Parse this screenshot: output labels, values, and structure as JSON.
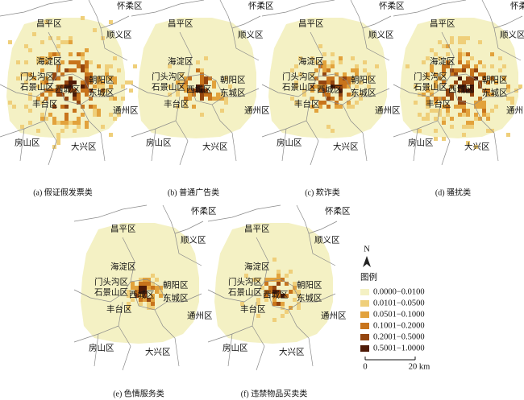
{
  "panels": [
    {
      "caption": "(a) 假证假发票类",
      "districts": [
        "昌平区",
        "怀柔区",
        "顺义区",
        "海淀区",
        "门头沟区",
        "石景山区",
        "西城区",
        "朝阳区",
        "东城区",
        "丰台区",
        "通州区",
        "房山区",
        "大兴区"
      ]
    },
    {
      "caption": "(b) 普通广告类",
      "districts": [
        "昌平区",
        "怀柔区",
        "顺义区",
        "海淀区",
        "门头沟区",
        "石景山区",
        "西城区",
        "朝阳区",
        "东城区",
        "丰台区",
        "通州区",
        "房山区",
        "大兴区"
      ]
    },
    {
      "caption": "(c) 欺诈类",
      "districts": [
        "昌平区",
        "怀柔区",
        "顺义区",
        "海淀区",
        "门头沟区",
        "石景山区",
        "西城区",
        "朝阳区",
        "东城区",
        "丰台区",
        "通州区",
        "房山区",
        "大兴区"
      ]
    },
    {
      "caption": "(d) 骚扰类",
      "districts": [
        "昌平区",
        "怀柔区",
        "顺义区",
        "海淀区",
        "门头沟区",
        "石景山区",
        "西城区",
        "朝阳区",
        "东城区",
        "丰台区",
        "通州区",
        "房山区",
        "大兴区"
      ]
    },
    {
      "caption": "(e) 色情服务类",
      "districts": [
        "昌平区",
        "怀柔区",
        "顺义区",
        "海淀区",
        "门头沟区",
        "石景山区",
        "西城区",
        "朝阳区",
        "东城区",
        "丰台区",
        "通州区",
        "房山区",
        "大兴区"
      ]
    },
    {
      "caption": "(f) 违禁物品买卖类",
      "districts": [
        "昌平区",
        "怀柔区",
        "顺义区",
        "海淀区",
        "门头沟区",
        "石景山区",
        "西城区",
        "朝阳区",
        "东城区",
        "丰台区",
        "通州区",
        "房山区",
        "大兴区"
      ]
    }
  ],
  "legend": {
    "north": "N",
    "title": "图例",
    "items": [
      {
        "label": "0.0000−0.0100",
        "color": "#f4f1c4"
      },
      {
        "label": "0.0101−0.0500",
        "color": "#efcf7a"
      },
      {
        "label": "0.0501−0.1000",
        "color": "#e2a23c"
      },
      {
        "label": "0.1001−0.2000",
        "color": "#c8741c"
      },
      {
        "label": "0.2001−0.5000",
        "color": "#94450f"
      },
      {
        "label": "0.5001−1.0000",
        "color": "#4e1a06"
      }
    ]
  },
  "scale": {
    "start": "0",
    "end": "20 km"
  }
}
